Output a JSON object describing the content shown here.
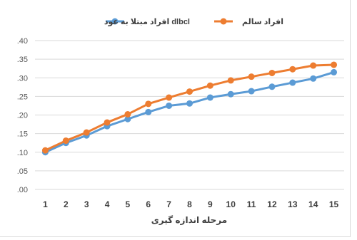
{
  "chart_data": {
    "type": "line",
    "xlabel": "مرحله اندازه گیری",
    "ylabel": "",
    "x": [
      1,
      2,
      3,
      4,
      5,
      6,
      7,
      8,
      9,
      10,
      11,
      12,
      13,
      14,
      15
    ],
    "ylim": [
      0,
      0.4
    ],
    "yticks": [
      ".00",
      ".05",
      ".10",
      ".15",
      ".20",
      ".25",
      ".30",
      ".35",
      ".40"
    ],
    "grid": true,
    "legend_position": "top",
    "series": [
      {
        "name": "افراد مبتلا به عود dlbcl",
        "color": "#5b9bd5",
        "values": [
          0.1,
          0.125,
          0.145,
          0.17,
          0.189,
          0.208,
          0.225,
          0.231,
          0.247,
          0.256,
          0.264,
          0.276,
          0.287,
          0.298,
          0.315
        ]
      },
      {
        "name": "افراد سالم",
        "color": "#ed7d31",
        "values": [
          0.105,
          0.131,
          0.153,
          0.18,
          0.202,
          0.23,
          0.247,
          0.263,
          0.279,
          0.293,
          0.303,
          0.313,
          0.323,
          0.333,
          0.335
        ]
      }
    ]
  }
}
